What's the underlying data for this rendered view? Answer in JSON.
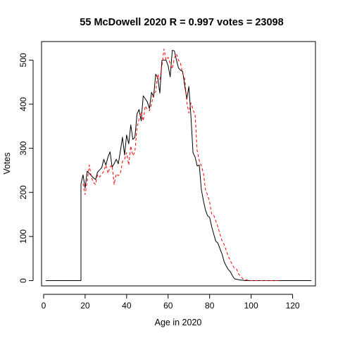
{
  "chart_data": {
    "type": "line",
    "title": "55 McDowell 2020 R = 0.997 votes = 23098",
    "xlabel": "Age in 2020",
    "ylabel": "Votes",
    "xlim": [
      -1,
      131
    ],
    "ylim": [
      -12,
      542
    ],
    "xticks": [
      0,
      20,
      40,
      60,
      80,
      100,
      120
    ],
    "yticks": [
      0,
      100,
      200,
      300,
      400,
      500
    ],
    "grid": false,
    "legend": "none",
    "series": [
      {
        "color": "#000000",
        "dash": "solid",
        "x": [
          1,
          18,
          18,
          19,
          20,
          21,
          22,
          23,
          24,
          25,
          26,
          27,
          28,
          29,
          30,
          31,
          32,
          33,
          34,
          35,
          36,
          37,
          38,
          39,
          40,
          41,
          42,
          43,
          44,
          45,
          46,
          47,
          48,
          49,
          50,
          51,
          52,
          53,
          54,
          55,
          56,
          57,
          58,
          59,
          60,
          61,
          62,
          63,
          64,
          65,
          66,
          67,
          68,
          69,
          70,
          71,
          72,
          73,
          74,
          75,
          76,
          77,
          78,
          79,
          80,
          81,
          82,
          83,
          84,
          85,
          86,
          87,
          88,
          89,
          90,
          91,
          92,
          93,
          94,
          95,
          96,
          97,
          98,
          99,
          100,
          101,
          102,
          103,
          104,
          105,
          106,
          107,
          108,
          109,
          110,
          111,
          112,
          113,
          114,
          115,
          116,
          117,
          118,
          119,
          120,
          121,
          122,
          123,
          124,
          125,
          126,
          127,
          128,
          129
        ],
        "y": [
          0,
          0,
          219,
          240,
          210,
          248,
          243,
          238,
          233,
          229,
          246,
          251,
          256,
          275,
          262,
          280,
          292,
          257,
          265,
          275,
          265,
          294,
          325,
          285,
          330,
          310,
          353,
          320,
          325,
          378,
          388,
          362,
          419,
          412,
          405,
          390,
          427,
          416,
          468,
          460,
          425,
          499,
          500,
          500,
          487,
          462,
          522,
          521,
          500,
          482,
          477,
          474,
          443,
          412,
          440,
          371,
          290,
          280,
          260,
          262,
          207,
          181,
          160,
          147,
          143,
          122,
          105,
          89,
          85,
          72,
          60,
          43,
          33,
          25,
          20,
          11,
          4,
          3,
          2,
          1,
          1,
          0,
          0,
          0,
          0,
          0,
          0,
          0,
          0,
          0,
          0,
          0,
          0,
          0,
          0,
          0,
          0,
          0,
          0,
          0,
          0,
          0,
          0,
          0,
          0,
          0,
          0,
          0,
          0,
          0,
          0,
          0,
          0,
          0
        ]
      },
      {
        "color": "#ff0000",
        "dash": "dashed",
        "x": [
          19,
          20,
          21,
          22,
          23,
          24,
          25,
          26,
          27,
          28,
          29,
          30,
          31,
          32,
          33,
          34,
          35,
          36,
          37,
          38,
          39,
          40,
          41,
          42,
          43,
          44,
          45,
          46,
          47,
          48,
          49,
          50,
          51,
          52,
          53,
          54,
          55,
          56,
          57,
          58,
          59,
          60,
          61,
          62,
          63,
          64,
          65,
          66,
          67,
          68,
          69,
          70,
          71,
          72,
          73,
          74,
          75,
          76,
          77,
          78,
          79,
          80,
          81,
          82,
          83,
          84,
          85,
          86,
          87,
          88,
          89,
          90,
          91,
          92,
          93,
          94,
          95,
          96,
          97,
          98,
          99,
          100,
          101,
          102,
          103,
          104,
          105,
          106,
          107,
          108,
          109,
          110,
          111,
          112,
          113
        ],
        "y": [
          220,
          195,
          225,
          262,
          235,
          222,
          218,
          240,
          235,
          241,
          248,
          262,
          243,
          258,
          262,
          218,
          242,
          238,
          243,
          270,
          275,
          290,
          262,
          305,
          283,
          292,
          348,
          366,
          382,
          362,
          396,
          388,
          385,
          400,
          424,
          428,
          468,
          456,
          486,
          525,
          500,
          506,
          492,
          480,
          505,
          514,
          500,
          492,
          469,
          458,
          405,
          380,
          403,
          388,
          375,
          295,
          272,
          260,
          244,
          206,
          194,
          178,
          150,
          148,
          135,
          122,
          105,
          90,
          82,
          68,
          55,
          45,
          35,
          28,
          26,
          14,
          10,
          4,
          2,
          1,
          1,
          0,
          0,
          0,
          0,
          0,
          0,
          0,
          0,
          0,
          0,
          0,
          0,
          0,
          0
        ]
      }
    ]
  }
}
